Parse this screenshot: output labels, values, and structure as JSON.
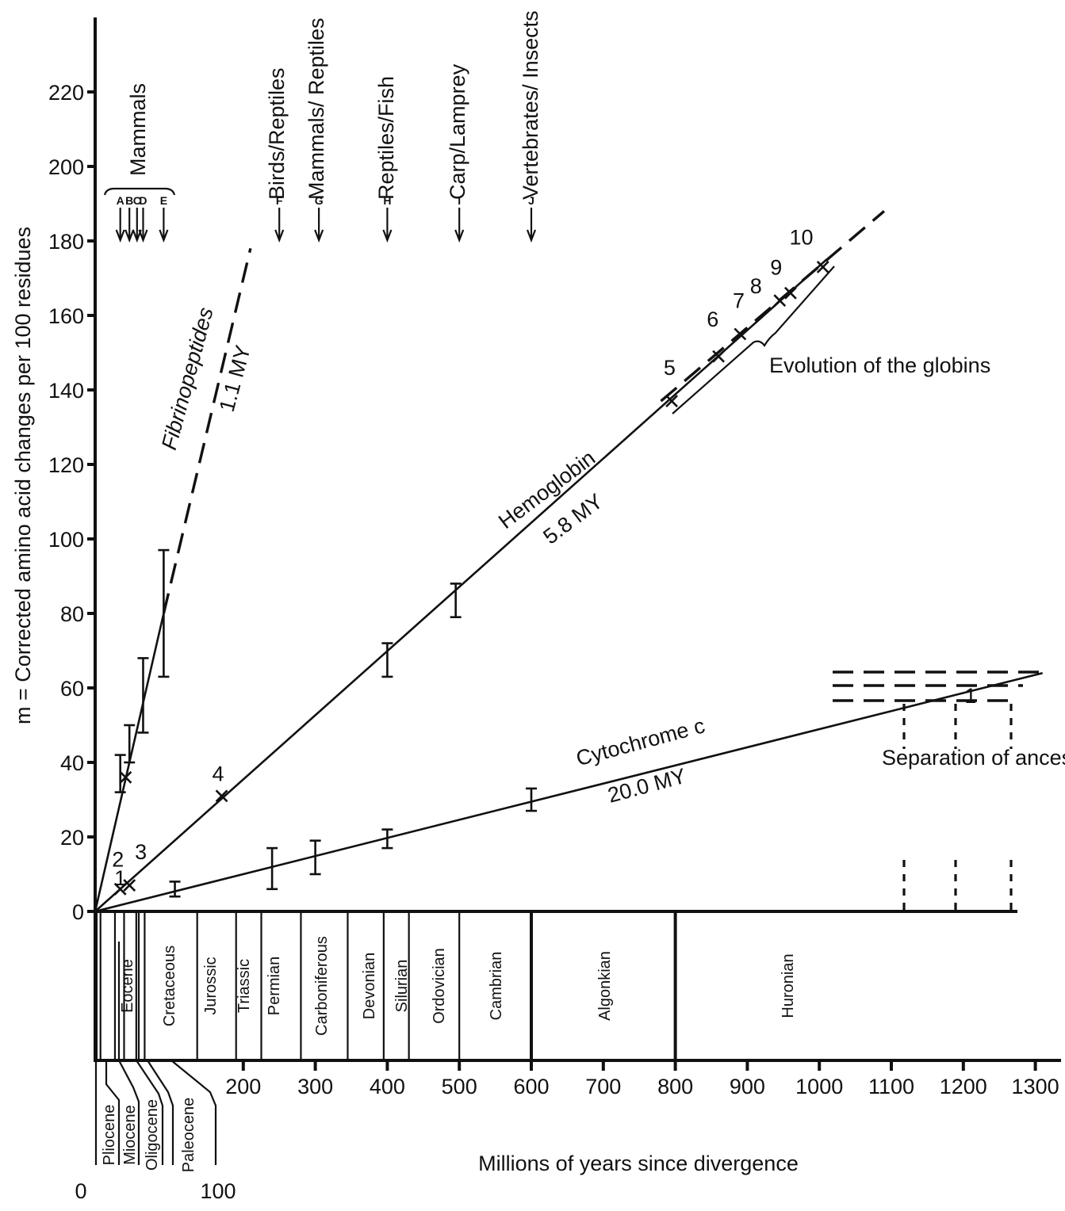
{
  "chart_data": {
    "type": "scatter",
    "title": "",
    "xlabel": "Millions of years since divergence",
    "ylabel": "m = Corrected amino acid changes per 100 residues",
    "xlim": [
      0,
      1350
    ],
    "ylim": [
      0,
      230
    ],
    "grid": false,
    "x_ticks": [
      200,
      300,
      400,
      500,
      600,
      700,
      800,
      900,
      1000,
      1100,
      1200,
      1300
    ],
    "y_ticks": [
      0,
      20,
      40,
      60,
      80,
      100,
      120,
      140,
      160,
      180,
      200,
      220
    ],
    "series": [
      {
        "name": "Fibrinopeptides",
        "rate_label": "1.1 MY",
        "line": [
          [
            0,
            0
          ],
          [
            210,
            178
          ]
        ],
        "error_bars": [
          {
            "x": 33,
            "y": 37,
            "low": 32,
            "high": 42
          },
          {
            "x": 45,
            "y": 45,
            "low": 40,
            "high": 50
          },
          {
            "x": 63,
            "y": 58,
            "low": 48,
            "high": 68
          },
          {
            "x": 90,
            "y": 80,
            "low": 63,
            "high": 97
          }
        ],
        "markers": [
          {
            "x": 40,
            "y": 36
          }
        ]
      },
      {
        "name": "Hemoglobin",
        "rate_label": "5.8 MY",
        "line": [
          [
            0,
            0
          ],
          [
            1010,
            175
          ]
        ],
        "error_bars": [
          {
            "x": 400,
            "y": 67,
            "low": 63,
            "high": 72
          },
          {
            "x": 495,
            "y": 84,
            "low": 79,
            "high": 88
          }
        ],
        "markers": [
          {
            "x": 170,
            "y": 31
          },
          {
            "x": 795,
            "y": 137
          },
          {
            "x": 860,
            "y": 149
          },
          {
            "x": 890,
            "y": 155
          },
          {
            "x": 945,
            "y": 164
          },
          {
            "x": 960,
            "y": 166
          },
          {
            "x": 1005,
            "y": 173
          }
        ]
      },
      {
        "name": "Cytochrome c",
        "rate_label": "20.0 MY",
        "line": [
          [
            0,
            0
          ],
          [
            1310,
            64
          ]
        ],
        "error_bars": [
          {
            "x": 105,
            "y": 6,
            "low": 4,
            "high": 8
          },
          {
            "x": 240,
            "y": 11,
            "low": 6,
            "high": 17
          },
          {
            "x": 300,
            "y": 14,
            "low": 10,
            "high": 19
          },
          {
            "x": 400,
            "y": 19,
            "low": 17,
            "high": 22
          },
          {
            "x": 600,
            "y": 30,
            "low": 27,
            "high": 33
          }
        ],
        "markers": [
          {
            "x": 33,
            "y": 6
          },
          {
            "x": 45,
            "y": 7
          }
        ]
      }
    ],
    "point_labels": [
      {
        "text": "1",
        "x": 33,
        "y": 7
      },
      {
        "text": "2",
        "x": 30,
        "y": 12
      },
      {
        "text": "3",
        "x": 60,
        "y": 14
      },
      {
        "text": "4",
        "x": 165,
        "y": 35
      },
      {
        "text": "5",
        "x": 792,
        "y": 144
      },
      {
        "text": "6",
        "x": 852,
        "y": 157
      },
      {
        "text": "7",
        "x": 888,
        "y": 162
      },
      {
        "text": "8",
        "x": 912,
        "y": 166
      },
      {
        "text": "9",
        "x": 940,
        "y": 171
      },
      {
        "text": "10",
        "x": 975,
        "y": 179
      },
      {
        "text": "1",
        "x": 1210,
        "y": 56
      }
    ],
    "divergences": [
      {
        "label": "A",
        "x": 33
      },
      {
        "label": "B",
        "x": 45
      },
      {
        "label": "C",
        "x": 55
      },
      {
        "label": "D",
        "x": 63
      },
      {
        "label": "E",
        "x": 90
      },
      {
        "label": "F",
        "x": 250,
        "group": "Birds/Reptiles"
      },
      {
        "label": "G",
        "x": 305,
        "group": "Mammals/ Reptiles"
      },
      {
        "label": "H",
        "x": 400,
        "group": "Reptiles/Fish"
      },
      {
        "label": "I",
        "x": 500,
        "group": "Carp/Lamprey"
      },
      {
        "label": "J",
        "x": 600,
        "group": "Vertebrates/ Insects"
      }
    ],
    "annotations": [
      "Mammals",
      "Birds/Reptiles",
      "Mammals/ Reptiles",
      "Reptiles/Fish",
      "Carp/Lamprey",
      "Vertebrates/ Insects",
      "Evolution of the globins",
      "Separation of ancestors of plants and animals"
    ],
    "periods": [
      "Pliocene",
      "Miocene",
      "Oligocene",
      "Eocene",
      "Paleocene",
      "Cretaceous",
      "Jurossic",
      "Triassic",
      "Permian",
      "Carboniferous",
      "Devonian",
      "Silurian",
      "Ordovician",
      "Cambrian",
      "Algonkian",
      "Huronian"
    ],
    "inset_scale": {
      "start": "0",
      "end": "100"
    }
  }
}
